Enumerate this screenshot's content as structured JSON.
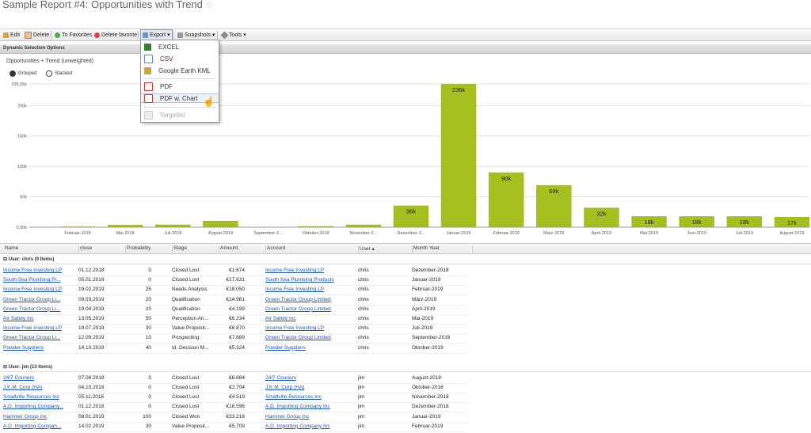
{
  "title": "Sample Report #4: Opportunities with Trend",
  "toolbar": {
    "edit": "Edit",
    "delete": "Delete",
    "to_favorites": "To Favorites",
    "delete_favorite": "Delete favorite",
    "export": "Export ▾",
    "snapshots": "Snapshots ▾",
    "tools": "Tools ▾"
  },
  "export_menu": {
    "excel": "EXCEL",
    "csv": "CSV",
    "kml": "Google Earth KML",
    "pdf": "PDF",
    "pdf_chart": "PDF w. Chart",
    "targetlist": "Targetlist"
  },
  "section_title": "Dynamic Selection Options",
  "chart_title": "Opportunities + Trend (unweighted)",
  "radios": {
    "grouped": "Grouped",
    "stacked": "Stacked",
    "selected": "grouped"
  },
  "chart_data": {
    "type": "bar",
    "categories": [
      "Februar-2018",
      "Mai-2018",
      "Juli-2018",
      "August-2018",
      "September-2...",
      "Oktober-2018",
      "November-2...",
      "Dezember-2...",
      "Januar-2019",
      "Februar-2019",
      "März-2019",
      "April-2019",
      "Mai-2019",
      "Juni-2019",
      "Juli-2019",
      "August-2019"
    ],
    "values": [
      1100,
      3800,
      4300,
      10500,
      700,
      1600,
      4200,
      35500,
      235500,
      90000,
      69000,
      32000,
      18000,
      18000,
      18000,
      17000
    ],
    "data_labels": [
      "",
      "",
      "",
      "",
      "",
      "",
      "",
      "36k",
      "236k",
      "90k",
      "69k",
      "32k",
      "18k",
      "18k",
      "18k",
      "17k"
    ],
    "y_ticks": [
      "0,00k",
      "50k",
      "100k",
      "150k",
      "200k",
      "235,55k"
    ],
    "y_tick_values": [
      0,
      50000,
      100000,
      150000,
      200000,
      235550
    ],
    "ylim": [
      0,
      235550
    ],
    "grid": true,
    "bar_color": "#a4bf1e"
  },
  "table": {
    "columns": [
      "Name",
      "close",
      "Probability",
      "Stage",
      "Amount",
      "Account",
      "User ▴",
      "Month Year"
    ],
    "groups": [
      {
        "label": "User: chris (9 Items)",
        "rows": [
          [
            "Income Free Investing LP",
            "01.12.2018",
            "0",
            "Closed Lost",
            "€1.674",
            "Income Free Investing LP",
            "chris",
            "Dezember-2018"
          ],
          [
            "South Sea Plumbing Pr...",
            "05.01.2019",
            "0",
            "Closed Lost",
            "€17.631",
            "South Sea Plumbing Products",
            "chris",
            "Januar-2019"
          ],
          [
            "Income Free Investing LP",
            "19.02.2019",
            "25",
            "Needs Analysis",
            "€18.050",
            "Income Free Investing LP",
            "chris",
            "Februar-2019"
          ],
          [
            "Green Tractor Group Li...",
            "09.03.2019",
            "20",
            "Qualification",
            "€14.981",
            "Green Tractor Group Limited",
            "chris",
            "März-2019"
          ],
          [
            "Green Tractor Group Li...",
            "19.04.2019",
            "20",
            "Qualification",
            "€4.199",
            "Green Tractor Group Limited",
            "chris",
            "April-2019"
          ],
          [
            "Air Safety Inc",
            "13.05.2019",
            "50",
            "Perception An...",
            "€6.234",
            "Air Safety Inc",
            "chris",
            "Mai-2019"
          ],
          [
            "Income Free Investing LP",
            "19.07.2019",
            "30",
            "Value Proposit...",
            "€6.870",
            "Income Free Investing LP",
            "chris",
            "Juli-2019"
          ],
          [
            "Green Tractor Group Li...",
            "12.09.2019",
            "10",
            "Prospecting",
            "€7.689",
            "Green Tractor Group Limited",
            "chris",
            "September-2019"
          ],
          [
            "Powder Suppliers",
            "14.10.2019",
            "40",
            "Id. Decision M...",
            "€5.324",
            "Powder Suppliers",
            "chris",
            "Oktober-2019"
          ]
        ]
      },
      {
        "label": "User: jim (13 Items)",
        "rows": [
          [
            "24/7 Couriers",
            "07.08.2018",
            "0",
            "Closed Lost",
            "€6.684",
            "24/7 Couriers",
            "jim",
            "August-2018"
          ],
          [
            "J.K.M. Corp (HA)",
            "04.10.2018",
            "0",
            "Closed Lost",
            "€2.704",
            "J.K.M. Corp (HA)",
            "jim",
            "Oktober-2018"
          ],
          [
            "Smallville Resources Inc",
            "05.11.2018",
            "0",
            "Closed Lost",
            "€4.519",
            "Smallville Resources Inc",
            "jim",
            "November-2018"
          ],
          [
            "A.D. Importing Company...",
            "01.12.2018",
            "0",
            "Closed Lost",
            "€16.596",
            "A.D. Importing Company Inc",
            "jim",
            "Dezember-2018"
          ],
          [
            "Hammer Group Inc",
            "08.01.2019",
            "100",
            "Closed Won",
            "€33.216",
            "Hammer Group Inc",
            "jim",
            "Januar-2019"
          ],
          [
            "A.D. Importing Compan...",
            "14.02.2019",
            "30",
            "Value Proposit...",
            "€5.709",
            "A.D. Importing Company Inc",
            "jim",
            "Februar-2019"
          ]
        ]
      }
    ]
  }
}
